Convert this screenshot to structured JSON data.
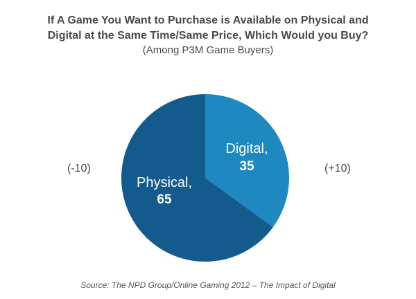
{
  "chart_data": {
    "type": "pie",
    "title_line1": "If A Game You Want to Purchase is Available on Physical and",
    "title_line2": "Digital at the Same Time/Same Price, Which Would you Buy?",
    "subtitle": "(Among P3M Game Buyers)",
    "slices": [
      {
        "label": "Digital,",
        "value": 35,
        "value_text": "35",
        "color": "#1e88c1",
        "change": "(+10)"
      },
      {
        "label": "Physical,",
        "value": 65,
        "value_text": "65",
        "color": "#135b8c",
        "change": "(-10)"
      }
    ],
    "source": "Source: The NPD Group/Online Gaming 2012 – The Impact of Digital"
  }
}
